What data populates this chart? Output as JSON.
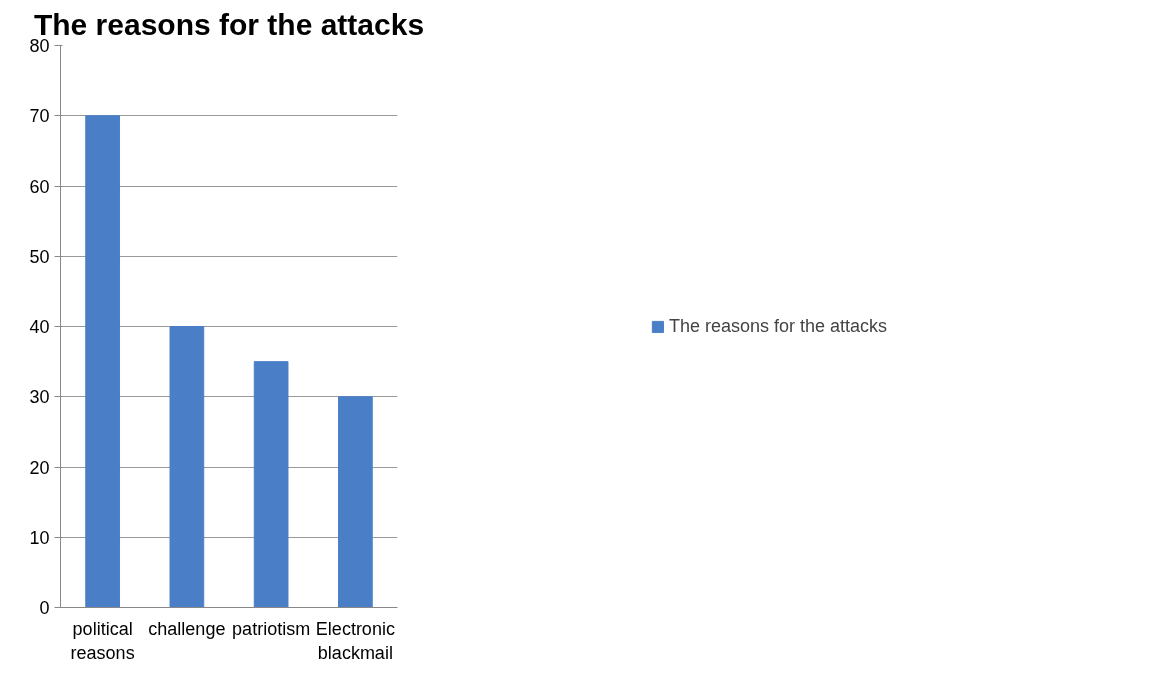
{
  "chart_data": {
    "type": "bar",
    "title": "The reasons for the attacks",
    "categories": [
      "political reasons",
      "challenge",
      "patriotism",
      "Electronic blackmail"
    ],
    "series": [
      {
        "name": "The reasons for the attacks",
        "color": "#4a7fc8",
        "values": [
          70,
          40,
          35,
          30
        ]
      }
    ],
    "ylim": [
      0,
      80
    ],
    "yticks": [
      0,
      10,
      20,
      30,
      40,
      50,
      60,
      70,
      80
    ],
    "grid": "y",
    "legend": "right"
  }
}
